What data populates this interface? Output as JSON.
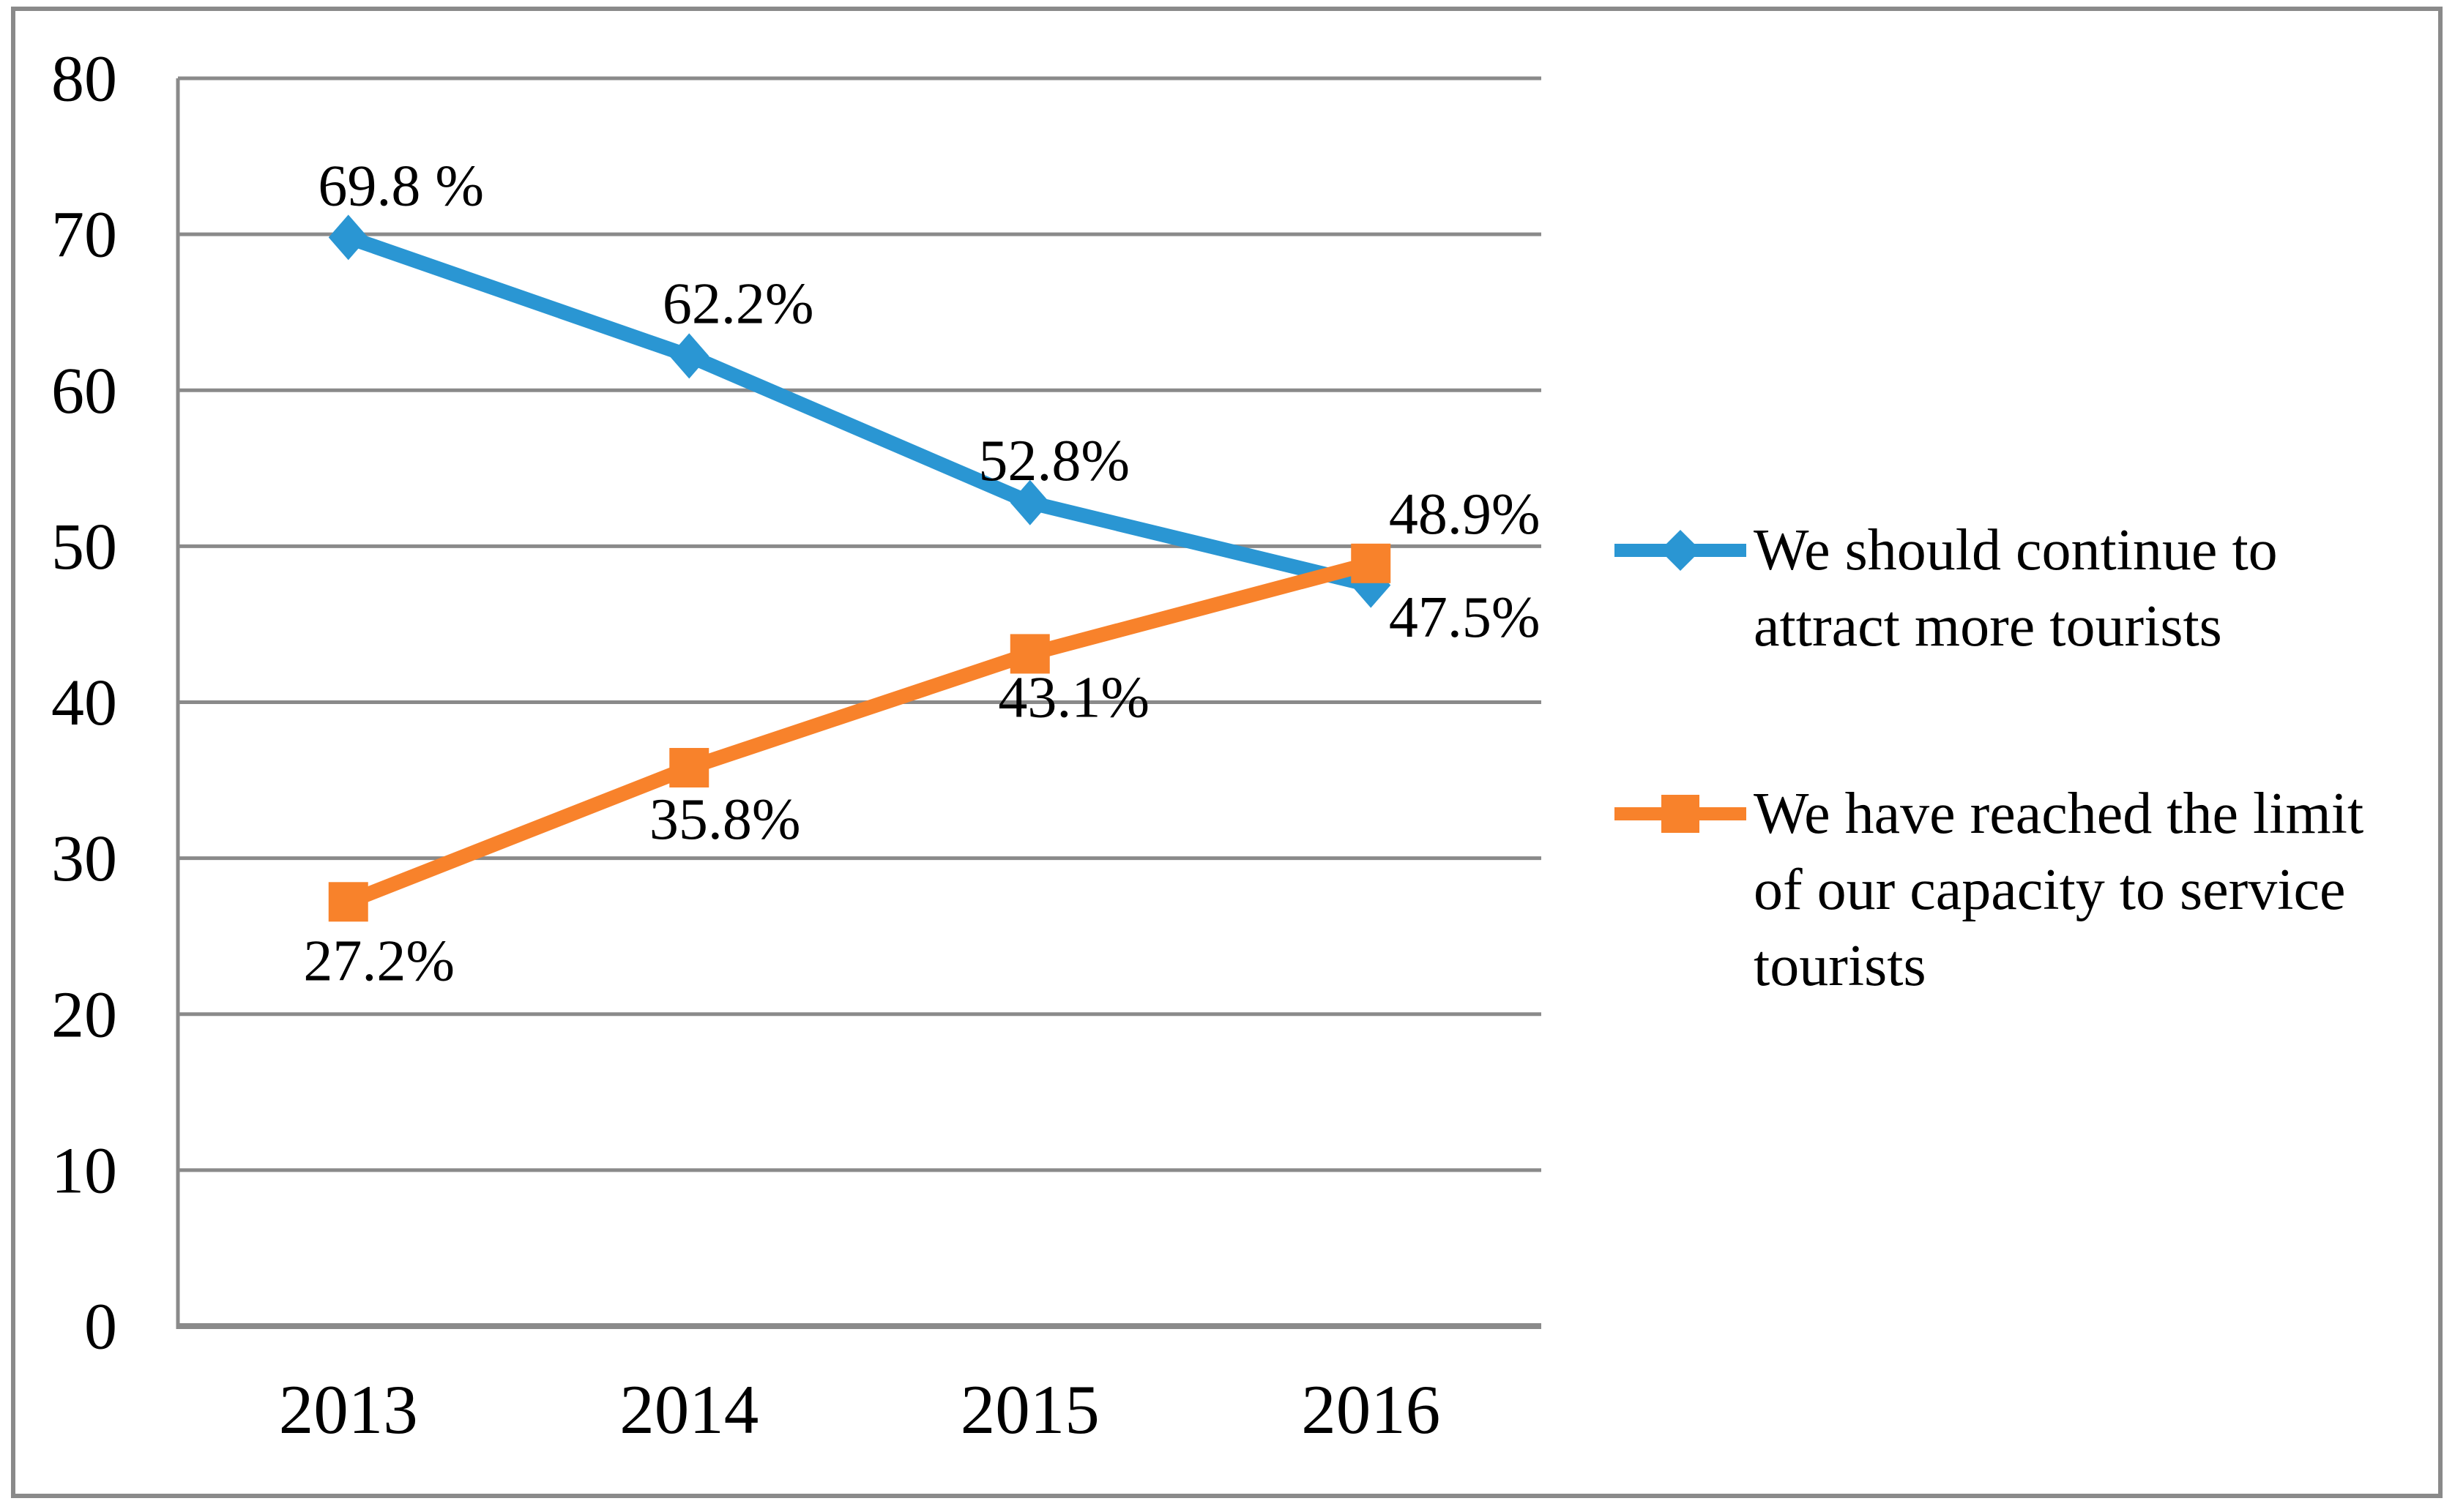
{
  "chart_data": {
    "type": "line",
    "title": "",
    "xlabel": "",
    "ylabel": "",
    "categories": [
      "2013",
      "2014",
      "2015",
      "2016"
    ],
    "series": [
      {
        "name": "We should continue to attract more tourists",
        "legend_lines": [
          "We should continue to",
          "attract more tourists"
        ],
        "values": [
          69.8,
          62.2,
          52.8,
          47.5
        ],
        "point_labels": [
          "69.8 %",
          "62.2%",
          "52.8%",
          "47.5%"
        ],
        "color": "#2A96D3",
        "marker": "diamond"
      },
      {
        "name": "We have reached the limit of our capacity to service tourists",
        "legend_lines": [
          "We have reached the limit",
          "of our capacity to service",
          "tourists"
        ],
        "values": [
          27.2,
          35.8,
          43.1,
          48.9
        ],
        "point_labels": [
          "27.2%",
          "35.8%",
          "43.1%",
          "48.9%"
        ],
        "color": "#F8822B",
        "marker": "square"
      }
    ],
    "ylim": [
      0,
      80
    ],
    "yticks": [
      0,
      10,
      20,
      30,
      40,
      50,
      60,
      70,
      80
    ],
    "grid": true,
    "grid_color": "#8A8A8A",
    "text_color": "#000000",
    "legend_position": "right"
  }
}
